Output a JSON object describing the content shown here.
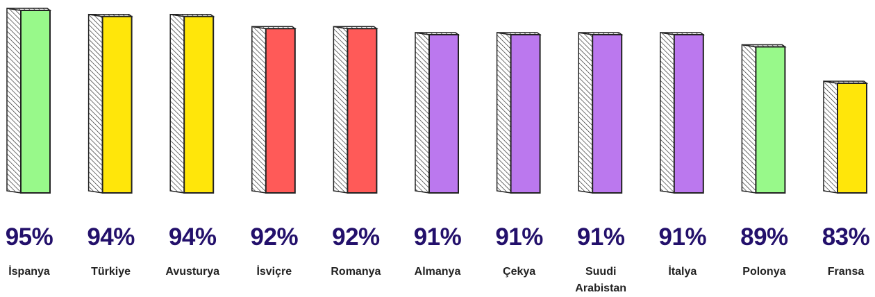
{
  "chart_data": {
    "type": "bar",
    "categories": [
      "İspanya",
      "Türkiye",
      "Avusturya",
      "İsviçre",
      "Romanya",
      "Almanya",
      "Çekya",
      "Suudi Arabistan",
      "İtalya",
      "Polonya",
      "Fransa"
    ],
    "values": [
      95,
      94,
      94,
      92,
      92,
      91,
      91,
      91,
      91,
      89,
      83
    ],
    "value_labels": [
      "95%",
      "94%",
      "94%",
      "92%",
      "92%",
      "91%",
      "91%",
      "91%",
      "91%",
      "89%",
      "83%"
    ],
    "colors": [
      "#98f98a",
      "#ffe60a",
      "#ffe60a",
      "#ff5a58",
      "#ff5a58",
      "#bb78ee",
      "#bb78ee",
      "#bb78ee",
      "#bb78ee",
      "#98f98a",
      "#ffe60a"
    ],
    "ylim": [
      65,
      95
    ]
  }
}
